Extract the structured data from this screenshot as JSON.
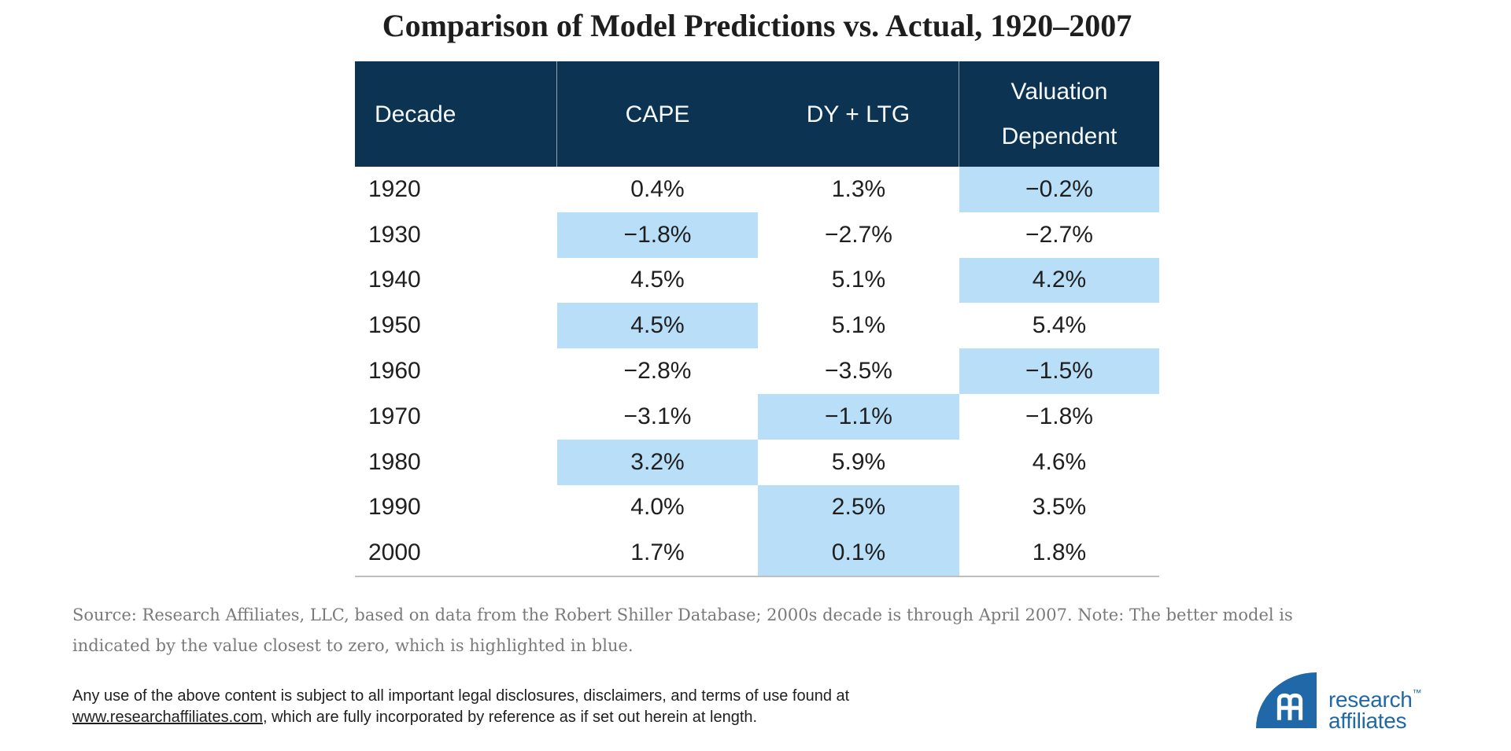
{
  "title": "Comparison of Model Predictions vs. Actual, 1920–2007",
  "table": {
    "columns": [
      "Decade",
      "CAPE",
      "DY + LTG",
      "Valuation\nDependent"
    ],
    "rows": [
      {
        "cells": [
          "1920",
          "0.4%",
          "1.3%",
          "−0.2%"
        ],
        "highlight": 3
      },
      {
        "cells": [
          "1930",
          "−1.8%",
          "−2.7%",
          "−2.7%"
        ],
        "highlight": 1
      },
      {
        "cells": [
          "1940",
          "4.5%",
          "5.1%",
          "4.2%"
        ],
        "highlight": 3
      },
      {
        "cells": [
          "1950",
          "4.5%",
          "5.1%",
          "5.4%"
        ],
        "highlight": 1
      },
      {
        "cells": [
          "1960",
          "−2.8%",
          "−3.5%",
          "−1.5%"
        ],
        "highlight": 3
      },
      {
        "cells": [
          "1970",
          "−3.1%",
          "−1.1%",
          "−1.8%"
        ],
        "highlight": 2
      },
      {
        "cells": [
          "1980",
          "3.2%",
          "5.9%",
          "4.6%"
        ],
        "highlight": 1
      },
      {
        "cells": [
          "1990",
          "4.0%",
          "2.5%",
          "3.5%"
        ],
        "highlight": 2
      },
      {
        "cells": [
          "2000",
          "1.7%",
          "0.1%",
          "1.8%"
        ],
        "highlight": 2
      }
    ]
  },
  "source_note": "Source: Research Affiliates, LLC, based on data from the Robert Shiller Database; 2000s decade is through April 2007. Note: The better model is\nindicated by the value closest to zero, which is highlighted in blue.",
  "legal": {
    "before_link": "Any use of the above content is subject to all important legal disclosures, disclaimers, and terms of use found at\n",
    "link": "www.researchaffiliates.com",
    "after_link": ", which are fully incorporated by reference as if set out herein at length."
  },
  "logo": {
    "line1": "research",
    "trademark": "™",
    "line2": "affiliates"
  },
  "colors": {
    "header_navy": "#0c3351",
    "highlight_blue": "#b9def7",
    "logo_blue": "#2068a8",
    "source_gray": "#7a7a7a",
    "body_text": "#1f1f1f",
    "table_bottom_rule": "#bfbfbf"
  },
  "chart_data": {
    "type": "table",
    "title": "Comparison of Model Predictions vs. Actual, 1920–2007",
    "categories": [
      "1920",
      "1930",
      "1940",
      "1950",
      "1960",
      "1970",
      "1980",
      "1990",
      "2000"
    ],
    "series": [
      {
        "name": "CAPE",
        "values": [
          0.4,
          -1.8,
          4.5,
          4.5,
          -2.8,
          -3.1,
          3.2,
          4.0,
          1.7
        ]
      },
      {
        "name": "DY + LTG",
        "values": [
          1.3,
          -2.7,
          5.1,
          5.1,
          -3.5,
          -1.1,
          5.9,
          2.5,
          0.1
        ]
      },
      {
        "name": "Valuation Dependent",
        "values": [
          -0.2,
          -2.7,
          4.2,
          5.4,
          -1.5,
          -1.8,
          4.6,
          3.5,
          1.8
        ]
      }
    ],
    "units": "percent",
    "highlighted_best_model_per_decade": [
      "Valuation Dependent",
      "CAPE",
      "Valuation Dependent",
      "CAPE",
      "Valuation Dependent",
      "DY + LTG",
      "CAPE",
      "DY + LTG",
      "DY + LTG"
    ],
    "note": "The better model is indicated by the value closest to zero, highlighted in blue."
  }
}
